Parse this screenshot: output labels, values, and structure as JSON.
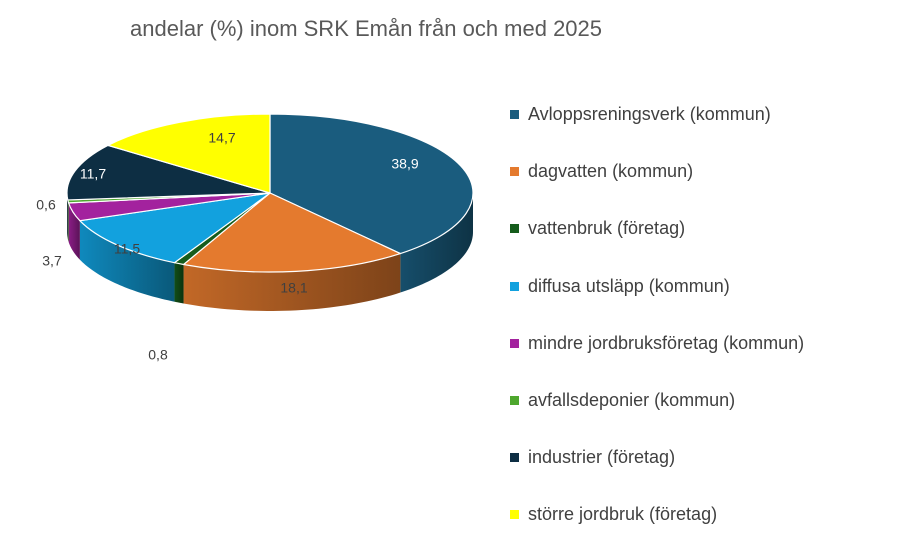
{
  "chart_data": {
    "type": "pie",
    "title": "andelar (%) inom SRK Emån från och med 2025",
    "categories": [
      "Avloppsreningsverk (kommun)",
      "dagvatten (kommun)",
      "vattenbruk (företag)",
      "diffusa utsläpp (kommun)",
      "mindre jordbruksföretag (kommun)",
      "avfallsdeponier (kommun)",
      "industrier (företag)",
      "större jordbruk (företag)"
    ],
    "values": [
      38.9,
      18.1,
      0.8,
      11.5,
      3.7,
      0.6,
      11.7,
      14.7
    ],
    "value_labels": [
      "38,9",
      "18,1",
      "0,8",
      "11,5",
      "3,7",
      "0,6",
      "11,7",
      "14,7"
    ],
    "colors": [
      "#1A5C7E",
      "#E47A2E",
      "#155C1C",
      "#12A1DE",
      "#A3229E",
      "#4EA72E",
      "#0D2E43",
      "#FFFF00"
    ],
    "legend_position": "right",
    "style": "3d"
  }
}
